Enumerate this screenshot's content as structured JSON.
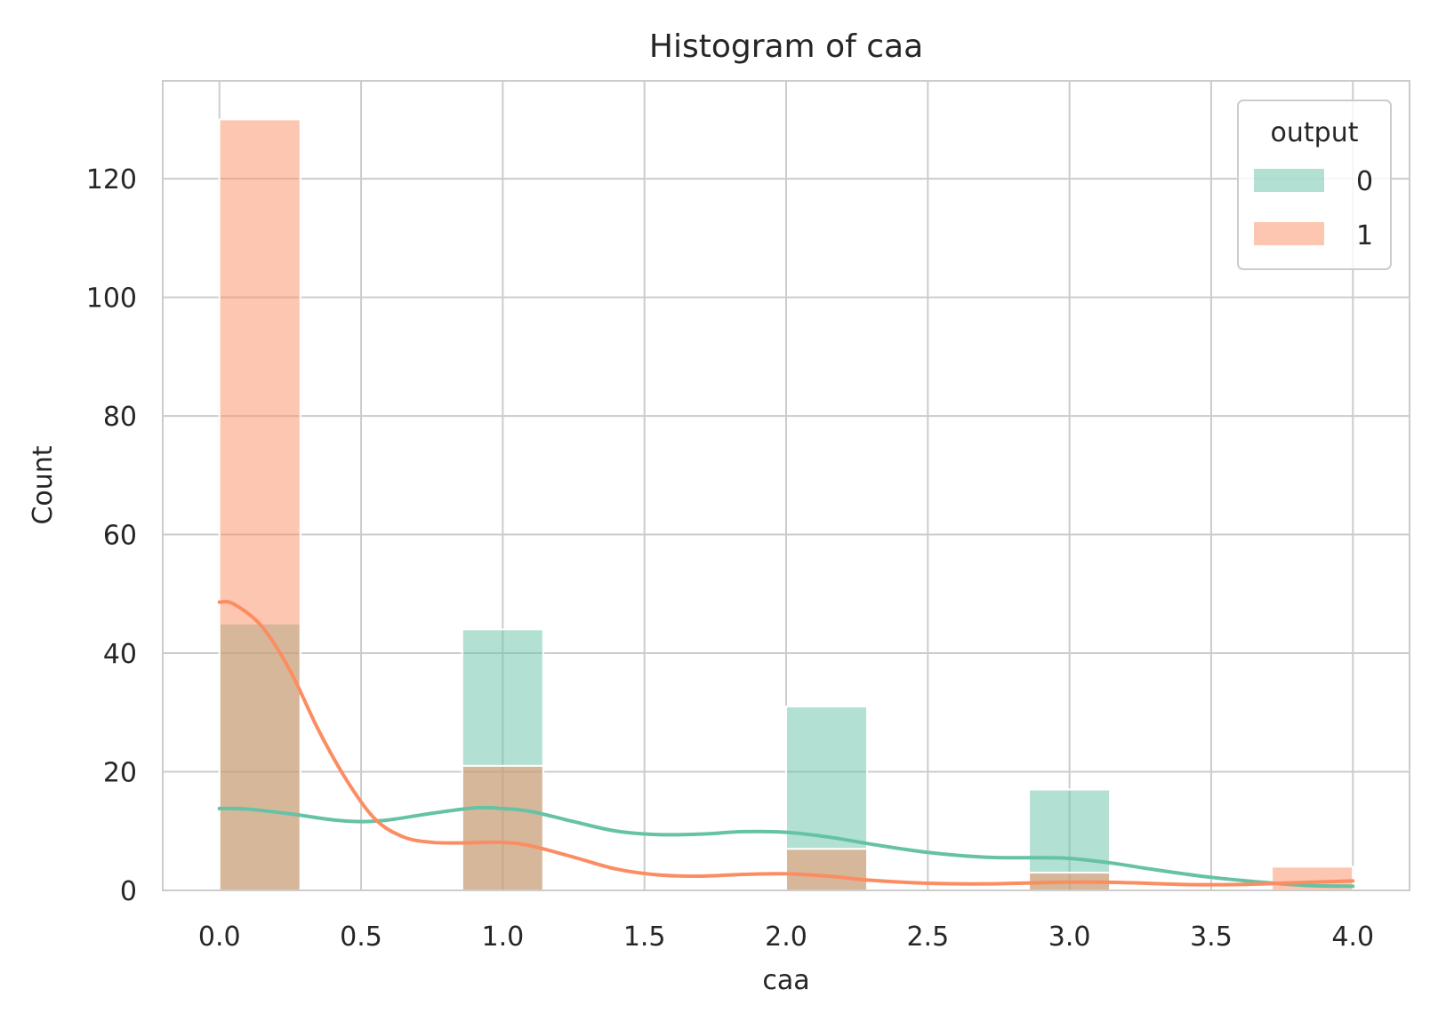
{
  "chart_data": {
    "type": "bar",
    "title": "Histogram of caa",
    "xlabel": "caa",
    "ylabel": "Count",
    "xlim": [
      -0.2,
      4.2
    ],
    "ylim": [
      0,
      136.5
    ],
    "xticks": [
      0.0,
      0.5,
      1.0,
      1.5,
      2.0,
      2.5,
      3.0,
      3.5,
      4.0
    ],
    "xtick_labels": [
      "0.0",
      "0.5",
      "1.0",
      "1.5",
      "2.0",
      "2.5",
      "3.0",
      "3.5",
      "4.0"
    ],
    "yticks": [
      0,
      20,
      40,
      60,
      80,
      100,
      120
    ],
    "ytick_labels": [
      "0",
      "20",
      "40",
      "60",
      "80",
      "100",
      "120"
    ],
    "bin_width": 0.2857,
    "bin_starts": [
      0.0,
      0.857,
      2.0,
      2.857,
      3.714
    ],
    "grid": true,
    "legend": {
      "title": "output",
      "placement": "top-right"
    },
    "series": [
      {
        "name": "0",
        "color": "#66c2a5",
        "values": [
          45,
          44,
          31,
          17,
          0
        ],
        "kde": [
          [
            0.0,
            13.8
          ],
          [
            0.1,
            13.7
          ],
          [
            0.25,
            12.9
          ],
          [
            0.4,
            11.9
          ],
          [
            0.5,
            11.6
          ],
          [
            0.6,
            11.9
          ],
          [
            0.75,
            13.0
          ],
          [
            0.9,
            13.9
          ],
          [
            1.0,
            13.8
          ],
          [
            1.1,
            13.3
          ],
          [
            1.25,
            11.6
          ],
          [
            1.4,
            10.0
          ],
          [
            1.55,
            9.4
          ],
          [
            1.7,
            9.5
          ],
          [
            1.85,
            9.9
          ],
          [
            2.0,
            9.8
          ],
          [
            2.15,
            9.0
          ],
          [
            2.3,
            7.8
          ],
          [
            2.5,
            6.4
          ],
          [
            2.7,
            5.6
          ],
          [
            2.9,
            5.5
          ],
          [
            3.0,
            5.4
          ],
          [
            3.15,
            4.6
          ],
          [
            3.3,
            3.5
          ],
          [
            3.5,
            2.2
          ],
          [
            3.7,
            1.3
          ],
          [
            3.85,
            0.8
          ],
          [
            4.0,
            0.7
          ]
        ]
      },
      {
        "name": "1",
        "color": "#fc8d62",
        "values": [
          130,
          21,
          7,
          3,
          4
        ],
        "kde": [
          [
            0.0,
            48.6
          ],
          [
            0.05,
            48.3
          ],
          [
            0.15,
            44.5
          ],
          [
            0.25,
            37.0
          ],
          [
            0.35,
            27.0
          ],
          [
            0.45,
            18.5
          ],
          [
            0.55,
            12.0
          ],
          [
            0.65,
            9.0
          ],
          [
            0.75,
            8.1
          ],
          [
            0.85,
            8.0
          ],
          [
            1.0,
            8.1
          ],
          [
            1.1,
            7.5
          ],
          [
            1.25,
            5.6
          ],
          [
            1.4,
            3.6
          ],
          [
            1.55,
            2.6
          ],
          [
            1.7,
            2.4
          ],
          [
            1.85,
            2.7
          ],
          [
            2.0,
            2.8
          ],
          [
            2.15,
            2.4
          ],
          [
            2.3,
            1.7
          ],
          [
            2.5,
            1.2
          ],
          [
            2.7,
            1.1
          ],
          [
            2.9,
            1.3
          ],
          [
            3.05,
            1.4
          ],
          [
            3.2,
            1.3
          ],
          [
            3.4,
            1.0
          ],
          [
            3.6,
            1.0
          ],
          [
            3.8,
            1.3
          ],
          [
            4.0,
            1.6
          ]
        ]
      }
    ]
  }
}
